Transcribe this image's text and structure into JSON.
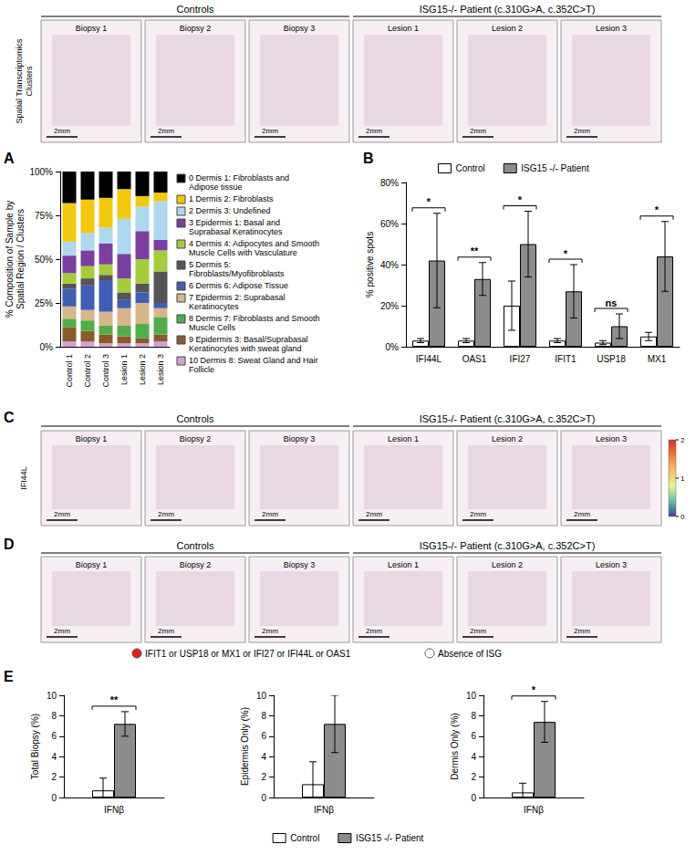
{
  "image_rows": [
    {
      "row_label": "Spatial Transcriptomics Clusters",
      "groups": [
        {
          "label": "Controls",
          "panels": [
            "Biopsy 1",
            "Biopsy 2",
            "Biopsy 3"
          ]
        },
        {
          "label": "ISG15-/- Patient (c.310G>A, c.352C>T)",
          "panels": [
            "Lesion 1",
            "Lesion 2",
            "Lesion 3"
          ]
        }
      ],
      "scale_bar": "2mm"
    },
    {
      "panel": "C",
      "row_label": "IFI44L",
      "groups": [
        {
          "label": "Controls",
          "panels": [
            "Biopsy 1",
            "Biopsy 2",
            "Biopsy 3"
          ]
        },
        {
          "label": "ISG15-/- Patient (c.310G>A, c.352C>T)",
          "panels": [
            "Lesion 1",
            "Lesion 2",
            "Lesion 3"
          ]
        }
      ],
      "scale_bar": "2mm",
      "colorbar": {
        "range": [
          0,
          2
        ],
        "ticks": [
          0,
          1,
          2
        ]
      }
    },
    {
      "panel": "D",
      "groups": [
        {
          "label": "Controls",
          "panels": [
            "Biopsy 1",
            "Biopsy 2",
            "Biopsy 3"
          ]
        },
        {
          "label": "ISG15-/- Patient (c.310G>A, c.352C>T)",
          "panels": [
            "Lesion 1",
            "Lesion 2",
            "Lesion 3"
          ]
        }
      ],
      "scale_bar": "2mm",
      "legend": [
        {
          "label": "IFIT1 or USP18 or MX1 or IFI27 or IFI44L or OAS1",
          "color": "#e0201c"
        },
        {
          "label": "Absence of ISG",
          "color": "#ffffff"
        }
      ]
    }
  ],
  "chart_data": [
    {
      "panel": "A",
      "type": "bar",
      "stacked": true,
      "legend": "right",
      "grid": false,
      "y_label": "% Composition of Sample by Spatial Region / Clusters",
      "categories": [
        "Control 1",
        "Control 2",
        "Control 3",
        "Lesion 1",
        "Lesion 2",
        "Lesion 3"
      ],
      "ylim": [
        0,
        100
      ],
      "yticks": [
        {
          "value": 0,
          "label": "0%"
        },
        {
          "value": 25,
          "label": "25%"
        },
        {
          "value": 50,
          "label": "50%"
        },
        {
          "value": 75,
          "label": "75%"
        },
        {
          "value": 100,
          "label": "100%"
        }
      ],
      "series": [
        {
          "name": "0 Dermis 1: Fibroblasts and Adipose tissue",
          "color": "#000000",
          "values": [
            18,
            16,
            15,
            10,
            14,
            12
          ]
        },
        {
          "name": "1 Dermis 2: Fibroblasts",
          "color": "#f2c80f",
          "values": [
            22,
            19,
            17,
            17,
            6,
            5
          ]
        },
        {
          "name": "2 Dermis 3: Undefined",
          "color": "#add8f0",
          "values": [
            8,
            10,
            9,
            20,
            14,
            22
          ]
        },
        {
          "name": "3 Epidermis 1: Basal and Suprabasal Keratinocytes",
          "color": "#7b3fa0",
          "values": [
            10,
            9,
            12,
            14,
            16,
            6
          ]
        },
        {
          "name": "4 Dermis 4: Adipocytes and Smooth Muscle Cells with Vasculature",
          "color": "#a4cc3c",
          "values": [
            6,
            7,
            6,
            8,
            14,
            12
          ]
        },
        {
          "name": "5 Dermis 5: Fibroblasts/Myofibroblasts",
          "color": "#555555",
          "values": [
            3,
            4,
            3,
            4,
            5,
            18
          ]
        },
        {
          "name": "6 Dermis 6: Adipose Tissue",
          "color": "#3f5fb5",
          "values": [
            10,
            14,
            18,
            5,
            6,
            3
          ]
        },
        {
          "name": "7 Epidermis 2: Suprabasal Keratinocytes",
          "color": "#d9b58c",
          "values": [
            7,
            6,
            8,
            10,
            12,
            5
          ]
        },
        {
          "name": "8 Dermis 7: Fibroblasts and Smooth Muscle Cells",
          "color": "#4fae4a",
          "values": [
            5,
            6,
            5,
            6,
            8,
            10
          ]
        },
        {
          "name": "9 Epidermis 3: Basal/Suprabasal Keratinocytes with sweat gland",
          "color": "#8b5a2b",
          "values": [
            8,
            6,
            5,
            4,
            3,
            4
          ]
        },
        {
          "name": "10 Dermis 8: Sweat Gland and Hair Follicle",
          "color": "#d79fd2",
          "values": [
            3,
            3,
            2,
            2,
            2,
            3
          ]
        }
      ]
    },
    {
      "panel": "B",
      "type": "bar",
      "legend": "top",
      "grid": false,
      "y_label": "% positive spots",
      "categories": [
        "IFI44L",
        "OAS1",
        "IFI27",
        "IFIT1",
        "USP18",
        "MX1"
      ],
      "ylim": [
        0,
        80
      ],
      "yticks": [
        {
          "value": 0,
          "label": "0%"
        },
        {
          "value": 20,
          "label": "20%"
        },
        {
          "value": 40,
          "label": "40%"
        },
        {
          "value": 60,
          "label": "60%"
        },
        {
          "value": 80,
          "label": "80%"
        }
      ],
      "significance": [
        "*",
        "**",
        "*",
        "*",
        "ns",
        "*"
      ],
      "series": [
        {
          "name": "Control",
          "color": "#ffffff",
          "values": [
            3,
            3,
            20,
            3,
            2,
            5
          ],
          "errors": [
            1,
            1,
            12,
            1,
            1,
            2
          ]
        },
        {
          "name": "ISG15 -/- Patient",
          "color": "#8c8c8c",
          "values": [
            42,
            33,
            50,
            27,
            10,
            44
          ],
          "errors": [
            23,
            8,
            16,
            13,
            6,
            17
          ]
        }
      ]
    },
    {
      "panel": "E",
      "type": "bar",
      "legend": "bottom",
      "grid": false,
      "y_label": "Total Biopsy (%)",
      "categories": [
        "IFNβ"
      ],
      "ylim": [
        0,
        10
      ],
      "yticks": [
        0,
        2,
        4,
        6,
        8,
        10
      ],
      "significance": [
        "**"
      ],
      "series": [
        {
          "name": "Control",
          "color": "#ffffff",
          "values": [
            0.7
          ],
          "errors": [
            1.2
          ]
        },
        {
          "name": "ISG15 -/- Patient",
          "color": "#8c8c8c",
          "values": [
            7.2
          ],
          "errors": [
            1.2
          ]
        }
      ]
    },
    {
      "type": "bar",
      "grid": false,
      "y_label": "Epidermis Only (%)",
      "categories": [
        "IFNβ"
      ],
      "ylim": [
        0,
        10
      ],
      "yticks": [
        0,
        2,
        4,
        6,
        8,
        10
      ],
      "significance": [
        null
      ],
      "series": [
        {
          "name": "Control",
          "color": "#ffffff",
          "values": [
            1.3
          ],
          "errors": [
            2.2
          ]
        },
        {
          "name": "ISG15 -/- Patient",
          "color": "#8c8c8c",
          "values": [
            7.2
          ],
          "errors": [
            2.8
          ]
        }
      ]
    },
    {
      "type": "bar",
      "grid": false,
      "y_label": "Dermis Only (%)",
      "categories": [
        "IFNβ"
      ],
      "ylim": [
        0,
        10
      ],
      "yticks": [
        0,
        2,
        4,
        6,
        8,
        10
      ],
      "significance": [
        "*"
      ],
      "series": [
        {
          "name": "Control",
          "color": "#ffffff",
          "values": [
            0.5
          ],
          "errors": [
            0.9
          ]
        },
        {
          "name": "ISG15 -/- Patient",
          "color": "#8c8c8c",
          "values": [
            7.4
          ],
          "errors": [
            2.0
          ]
        }
      ]
    }
  ]
}
